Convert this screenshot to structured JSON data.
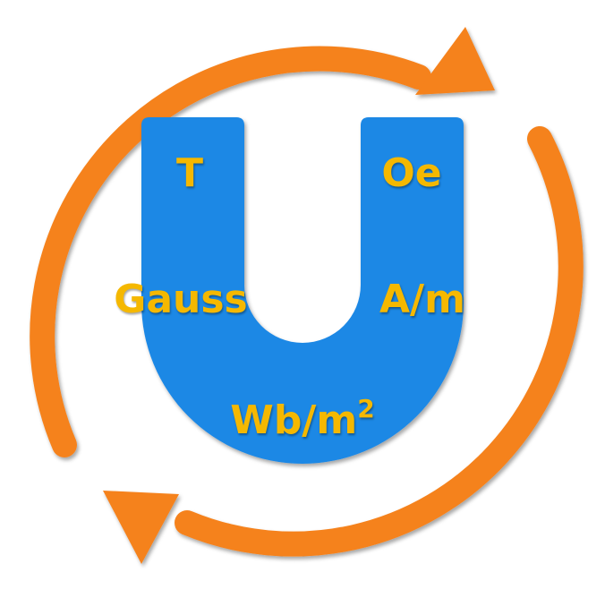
{
  "colors": {
    "arrow": "#F5821F",
    "magnet": "#1E88E5",
    "label": "#F5B800"
  },
  "icons": {
    "arrow_top": "circular-arrow-icon",
    "arrow_bottom": "circular-arrow-icon",
    "magnet": "horseshoe-magnet-icon"
  },
  "units": {
    "tesla": "T",
    "oersted": "Oe",
    "gauss": "Gauss",
    "amp_per_meter": "A/m",
    "weber_base": "Wb/m",
    "weber_exp": "2"
  }
}
